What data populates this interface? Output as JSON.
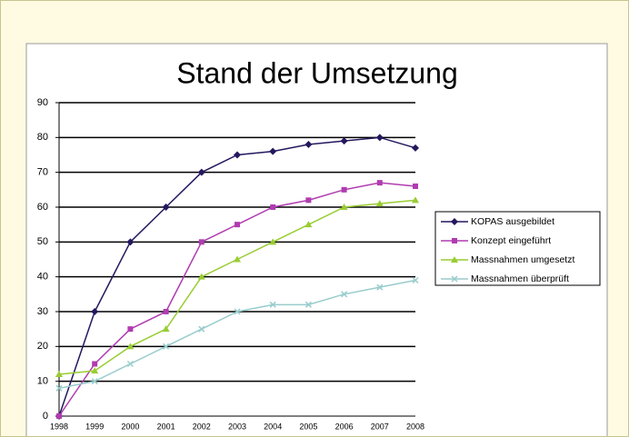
{
  "chart_data": {
    "type": "line",
    "title": "Stand der Umsetzung",
    "categories": [
      "1998",
      "1999",
      "2000",
      "2001",
      "2002",
      "2003",
      "2004",
      "2005",
      "2006",
      "2007",
      "2008"
    ],
    "series": [
      {
        "name": "KOPAS ausgebildet",
        "color": "#25175e",
        "marker": "diamond",
        "values": [
          0,
          30,
          50,
          60,
          70,
          75,
          76,
          78,
          79,
          80,
          77
        ]
      },
      {
        "name": "Konzept eingeführt",
        "color": "#b03cb0",
        "marker": "square",
        "values": [
          0,
          15,
          25,
          30,
          50,
          55,
          60,
          62,
          65,
          67,
          66
        ]
      },
      {
        "name": "Massnahmen umgesetzt",
        "color": "#99cc33",
        "marker": "triangle",
        "values": [
          12,
          13,
          20,
          25,
          40,
          45,
          50,
          55,
          60,
          61,
          62
        ]
      },
      {
        "name": "Massnahmen überprüft",
        "color": "#99cccc",
        "marker": "x",
        "values": [
          8,
          10,
          15,
          20,
          25,
          30,
          32,
          32,
          35,
          37,
          39
        ]
      }
    ],
    "ylim": [
      0,
      90
    ],
    "yticks": [
      0,
      10,
      20,
      30,
      40,
      50,
      60,
      70,
      80,
      90
    ],
    "grid": true,
    "legend": "right"
  }
}
